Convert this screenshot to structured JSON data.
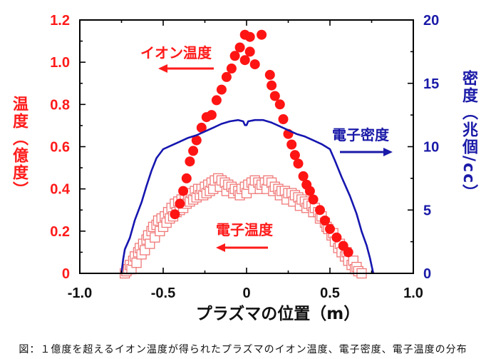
{
  "caption": "図：１億度を超えるイオン温度が得られたプラズマのイオン温度、電子密度、電子温度の分布",
  "chart_data": {
    "type": "scatter",
    "xlabel": "プラズマの位置（m）",
    "ylabel": "温度（億度）",
    "y2label": "密度（兆個/cc）",
    "xlim": [
      -1.0,
      1.0
    ],
    "ylim": [
      0,
      1.2
    ],
    "y2lim": [
      0,
      20
    ],
    "xticks": [
      -1.0,
      -0.5,
      0,
      0.5,
      1.0
    ],
    "xtick_labels": [
      "-1.0",
      "-0.5",
      "0",
      "0.5",
      "1.0"
    ],
    "yticks": [
      0,
      0.2,
      0.4,
      0.6,
      0.8,
      1.0,
      1.2
    ],
    "ytick_labels": [
      "0",
      "0.2",
      "0.4",
      "0.6",
      "0.8",
      "1.0",
      "1.2"
    ],
    "y2ticks": [
      0,
      5,
      10,
      15,
      20
    ],
    "y2tick_labels": [
      "0",
      "5",
      "10",
      "15",
      "20"
    ],
    "grid": false,
    "colors": {
      "left_axis": "#ff1a1a",
      "right_axis": "#1a1aa8",
      "x_axis": "#111111"
    },
    "series": [
      {
        "name": "イオン温度",
        "type": "scatter",
        "marker": "filled-circle",
        "axis": "left",
        "arrow": "left",
        "color": "#ff1414",
        "points": [
          [
            -0.43,
            0.28
          ],
          [
            -0.4,
            0.33
          ],
          [
            -0.38,
            0.39
          ],
          [
            -0.36,
            0.45
          ],
          [
            -0.34,
            0.53
          ],
          [
            -0.32,
            0.58
          ],
          [
            -0.3,
            0.63
          ],
          [
            -0.27,
            0.69
          ],
          [
            -0.24,
            0.74
          ],
          [
            -0.21,
            0.75
          ],
          [
            -0.18,
            0.82
          ],
          [
            -0.15,
            0.87
          ],
          [
            -0.12,
            0.93
          ],
          [
            -0.09,
            0.97
          ],
          [
            -0.07,
            1.03
          ],
          [
            -0.04,
            1.07
          ],
          [
            -0.01,
            1.13
          ],
          [
            -0.01,
            1.01
          ],
          [
            0.02,
            1.12
          ],
          [
            0.02,
            1.05
          ],
          [
            0.05,
            0.99
          ],
          [
            0.09,
            1.13
          ],
          [
            0.14,
            0.94
          ],
          [
            0.15,
            0.89
          ],
          [
            0.17,
            0.84
          ],
          [
            0.2,
            0.8
          ],
          [
            0.22,
            0.73
          ],
          [
            0.25,
            0.66
          ],
          [
            0.27,
            0.61
          ],
          [
            0.29,
            0.56
          ],
          [
            0.31,
            0.52
          ],
          [
            0.34,
            0.46
          ],
          [
            0.36,
            0.42
          ],
          [
            0.38,
            0.39
          ],
          [
            0.4,
            0.35
          ],
          [
            0.44,
            0.3
          ],
          [
            0.47,
            0.25
          ],
          [
            0.5,
            0.21
          ],
          [
            0.54,
            0.17
          ],
          [
            0.58,
            0.13
          ],
          [
            0.61,
            0.1
          ]
        ]
      },
      {
        "name": "電子密度",
        "type": "line",
        "axis": "right",
        "arrow": "right",
        "color": "#1616b0",
        "points": [
          [
            -0.75,
            0
          ],
          [
            -0.74,
            1.1
          ],
          [
            -0.73,
            1.9
          ],
          [
            -0.7,
            2.8
          ],
          [
            -0.67,
            4.2
          ],
          [
            -0.63,
            5.6
          ],
          [
            -0.6,
            6.9
          ],
          [
            -0.57,
            8.1
          ],
          [
            -0.54,
            9.1
          ],
          [
            -0.5,
            9.8
          ],
          [
            -0.45,
            10.1
          ],
          [
            -0.4,
            10.4
          ],
          [
            -0.35,
            10.7
          ],
          [
            -0.3,
            10.9
          ],
          [
            -0.25,
            11.2
          ],
          [
            -0.2,
            11.5
          ],
          [
            -0.15,
            11.8
          ],
          [
            -0.1,
            12.0
          ],
          [
            -0.05,
            12.1
          ],
          [
            -0.02,
            12.0
          ],
          [
            -0.01,
            11.7
          ],
          [
            0.0,
            11.7
          ],
          [
            0.01,
            12.0
          ],
          [
            0.05,
            12.1
          ],
          [
            0.1,
            12.1
          ],
          [
            0.15,
            11.9
          ],
          [
            0.2,
            11.6
          ],
          [
            0.25,
            11.3
          ],
          [
            0.3,
            11.0
          ],
          [
            0.35,
            10.8
          ],
          [
            0.4,
            10.5
          ],
          [
            0.45,
            10.2
          ],
          [
            0.5,
            9.8
          ],
          [
            0.53,
            8.9
          ],
          [
            0.57,
            7.6
          ],
          [
            0.62,
            6.1
          ],
          [
            0.66,
            4.7
          ],
          [
            0.69,
            3.3
          ],
          [
            0.72,
            2.2
          ],
          [
            0.74,
            1.2
          ],
          [
            0.76,
            0
          ]
        ]
      },
      {
        "name": "電子温度",
        "type": "scatter",
        "marker": "open-square",
        "axis": "left",
        "arrow": "left",
        "color": "#f07878",
        "points": [
          [
            -0.73,
            0.0
          ],
          [
            -0.72,
            0.01
          ],
          [
            -0.71,
            0.02
          ],
          [
            -0.7,
            0.04
          ],
          [
            -0.69,
            0.02
          ],
          [
            -0.68,
            0.06
          ],
          [
            -0.67,
            0.08
          ],
          [
            -0.66,
            0.05
          ],
          [
            -0.65,
            0.1
          ],
          [
            -0.64,
            0.12
          ],
          [
            -0.63,
            0.09
          ],
          [
            -0.62,
            0.14
          ],
          [
            -0.61,
            0.11
          ],
          [
            -0.6,
            0.16
          ],
          [
            -0.59,
            0.18
          ],
          [
            -0.58,
            0.14
          ],
          [
            -0.57,
            0.2
          ],
          [
            -0.56,
            0.22
          ],
          [
            -0.55,
            0.17
          ],
          [
            -0.54,
            0.23
          ],
          [
            -0.53,
            0.25
          ],
          [
            -0.52,
            0.2
          ],
          [
            -0.51,
            0.26
          ],
          [
            -0.5,
            0.22
          ],
          [
            -0.49,
            0.27
          ],
          [
            -0.48,
            0.24
          ],
          [
            -0.47,
            0.29
          ],
          [
            -0.46,
            0.26
          ],
          [
            -0.45,
            0.31
          ],
          [
            -0.44,
            0.27
          ],
          [
            -0.43,
            0.33
          ],
          [
            -0.42,
            0.29
          ],
          [
            -0.41,
            0.34
          ],
          [
            -0.4,
            0.3
          ],
          [
            -0.39,
            0.35
          ],
          [
            -0.38,
            0.31
          ],
          [
            -0.37,
            0.36
          ],
          [
            -0.36,
            0.33
          ],
          [
            -0.35,
            0.37
          ],
          [
            -0.34,
            0.34
          ],
          [
            -0.33,
            0.38
          ],
          [
            -0.32,
            0.35
          ],
          [
            -0.31,
            0.39
          ],
          [
            -0.3,
            0.36
          ],
          [
            -0.29,
            0.4
          ],
          [
            -0.28,
            0.37
          ],
          [
            -0.27,
            0.4
          ],
          [
            -0.26,
            0.37
          ],
          [
            -0.25,
            0.41
          ],
          [
            -0.24,
            0.38
          ],
          [
            -0.23,
            0.42
          ],
          [
            -0.22,
            0.39
          ],
          [
            -0.21,
            0.43
          ],
          [
            -0.2,
            0.4
          ],
          [
            -0.19,
            0.44
          ],
          [
            -0.17,
            0.45
          ],
          [
            -0.16,
            0.41
          ],
          [
            -0.15,
            0.44
          ],
          [
            -0.13,
            0.43
          ],
          [
            -0.12,
            0.39
          ],
          [
            -0.11,
            0.42
          ],
          [
            -0.09,
            0.41
          ],
          [
            -0.08,
            0.38
          ],
          [
            -0.07,
            0.4
          ],
          [
            -0.05,
            0.39
          ],
          [
            -0.04,
            0.37
          ],
          [
            -0.03,
            0.4
          ],
          [
            -0.01,
            0.41
          ],
          [
            0.0,
            0.38
          ],
          [
            0.01,
            0.42
          ],
          [
            0.03,
            0.43
          ],
          [
            0.04,
            0.4
          ],
          [
            0.05,
            0.44
          ],
          [
            0.07,
            0.43
          ],
          [
            0.08,
            0.4
          ],
          [
            0.09,
            0.42
          ],
          [
            0.11,
            0.43
          ],
          [
            0.12,
            0.4
          ],
          [
            0.13,
            0.44
          ],
          [
            0.15,
            0.43
          ],
          [
            0.16,
            0.39
          ],
          [
            0.17,
            0.41
          ],
          [
            0.19,
            0.4
          ],
          [
            0.2,
            0.37
          ],
          [
            0.21,
            0.39
          ],
          [
            0.23,
            0.39
          ],
          [
            0.24,
            0.35
          ],
          [
            0.25,
            0.38
          ],
          [
            0.27,
            0.38
          ],
          [
            0.28,
            0.34
          ],
          [
            0.29,
            0.37
          ],
          [
            0.31,
            0.36
          ],
          [
            0.32,
            0.32
          ],
          [
            0.33,
            0.35
          ],
          [
            0.35,
            0.34
          ],
          [
            0.36,
            0.31
          ],
          [
            0.37,
            0.33
          ],
          [
            0.39,
            0.32
          ],
          [
            0.4,
            0.29
          ],
          [
            0.41,
            0.31
          ],
          [
            0.43,
            0.29
          ],
          [
            0.44,
            0.26
          ],
          [
            0.45,
            0.27
          ],
          [
            0.47,
            0.24
          ],
          [
            0.48,
            0.22
          ],
          [
            0.49,
            0.21
          ],
          [
            0.51,
            0.18
          ],
          [
            0.52,
            0.19
          ],
          [
            0.53,
            0.15
          ],
          [
            0.55,
            0.12
          ],
          [
            0.56,
            0.14
          ],
          [
            0.57,
            0.1
          ],
          [
            0.59,
            0.08
          ],
          [
            0.6,
            0.1
          ],
          [
            0.61,
            0.06
          ],
          [
            0.63,
            0.04
          ],
          [
            0.64,
            0.06
          ],
          [
            0.65,
            0.02
          ],
          [
            0.66,
            0.03
          ],
          [
            0.67,
            0.01
          ],
          [
            0.69,
            0.0
          ]
        ]
      }
    ]
  }
}
